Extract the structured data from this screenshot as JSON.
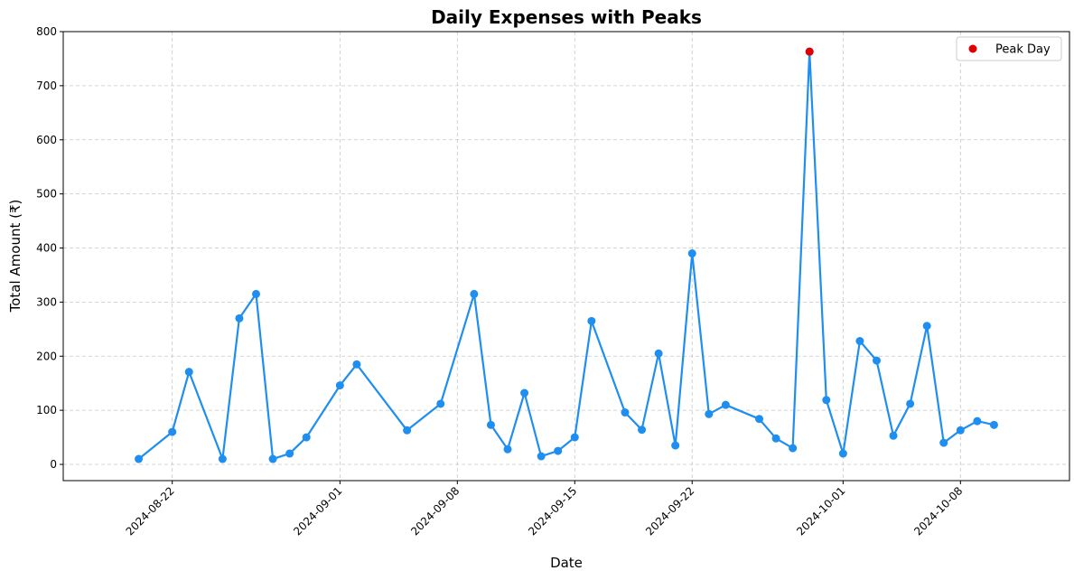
{
  "chart_data": {
    "type": "line",
    "title": "Daily Expenses with Peaks",
    "xlabel": "Date",
    "ylabel": "Total Amount (₹)",
    "ylim": [
      -30,
      800
    ],
    "xlim": [
      "2024-08-15T12:00",
      "2024-10-14T12:00"
    ],
    "y_ticks": [
      0,
      100,
      200,
      300,
      400,
      500,
      600,
      700,
      800
    ],
    "x_ticks": [
      "2024-08-22",
      "2024-09-01",
      "2024-09-08",
      "2024-09-15",
      "2024-09-22",
      "2024-10-01",
      "2024-10-08"
    ],
    "grid": true,
    "legend": {
      "position": "top-right",
      "entries": [
        "Peak Day"
      ]
    },
    "series": [
      {
        "color": "#1f8ef1",
        "x": [
          "2024-08-20",
          "2024-08-22",
          "2024-08-23",
          "2024-08-25",
          "2024-08-26",
          "2024-08-27",
          "2024-08-28",
          "2024-08-29",
          "2024-08-30",
          "2024-09-01",
          "2024-09-02",
          "2024-09-05",
          "2024-09-07",
          "2024-09-09",
          "2024-09-10",
          "2024-09-11",
          "2024-09-12",
          "2024-09-13",
          "2024-09-14",
          "2024-09-15",
          "2024-09-16",
          "2024-09-18",
          "2024-09-19",
          "2024-09-20",
          "2024-09-21",
          "2024-09-22",
          "2024-09-23",
          "2024-09-24",
          "2024-09-26",
          "2024-09-27",
          "2024-09-28",
          "2024-09-29",
          "2024-09-30",
          "2024-10-01",
          "2024-10-02",
          "2024-10-03",
          "2024-10-04",
          "2024-10-05",
          "2024-10-06",
          "2024-10-07",
          "2024-10-08",
          "2024-10-09",
          "2024-10-10"
        ],
        "values": [
          10,
          60,
          171,
          10,
          270,
          315,
          10,
          20,
          50,
          146,
          185,
          63,
          112,
          315,
          73,
          28,
          132,
          15,
          25,
          50,
          265,
          96,
          64,
          205,
          35,
          390,
          93,
          110,
          84,
          48,
          30,
          763,
          119,
          20,
          228,
          192,
          53,
          112,
          256,
          40,
          63,
          80,
          73
        ]
      },
      {
        "name": "Peak Day",
        "type": "scatter",
        "color": "#e00000",
        "x": [
          "2024-09-29"
        ],
        "values": [
          763
        ]
      }
    ]
  }
}
